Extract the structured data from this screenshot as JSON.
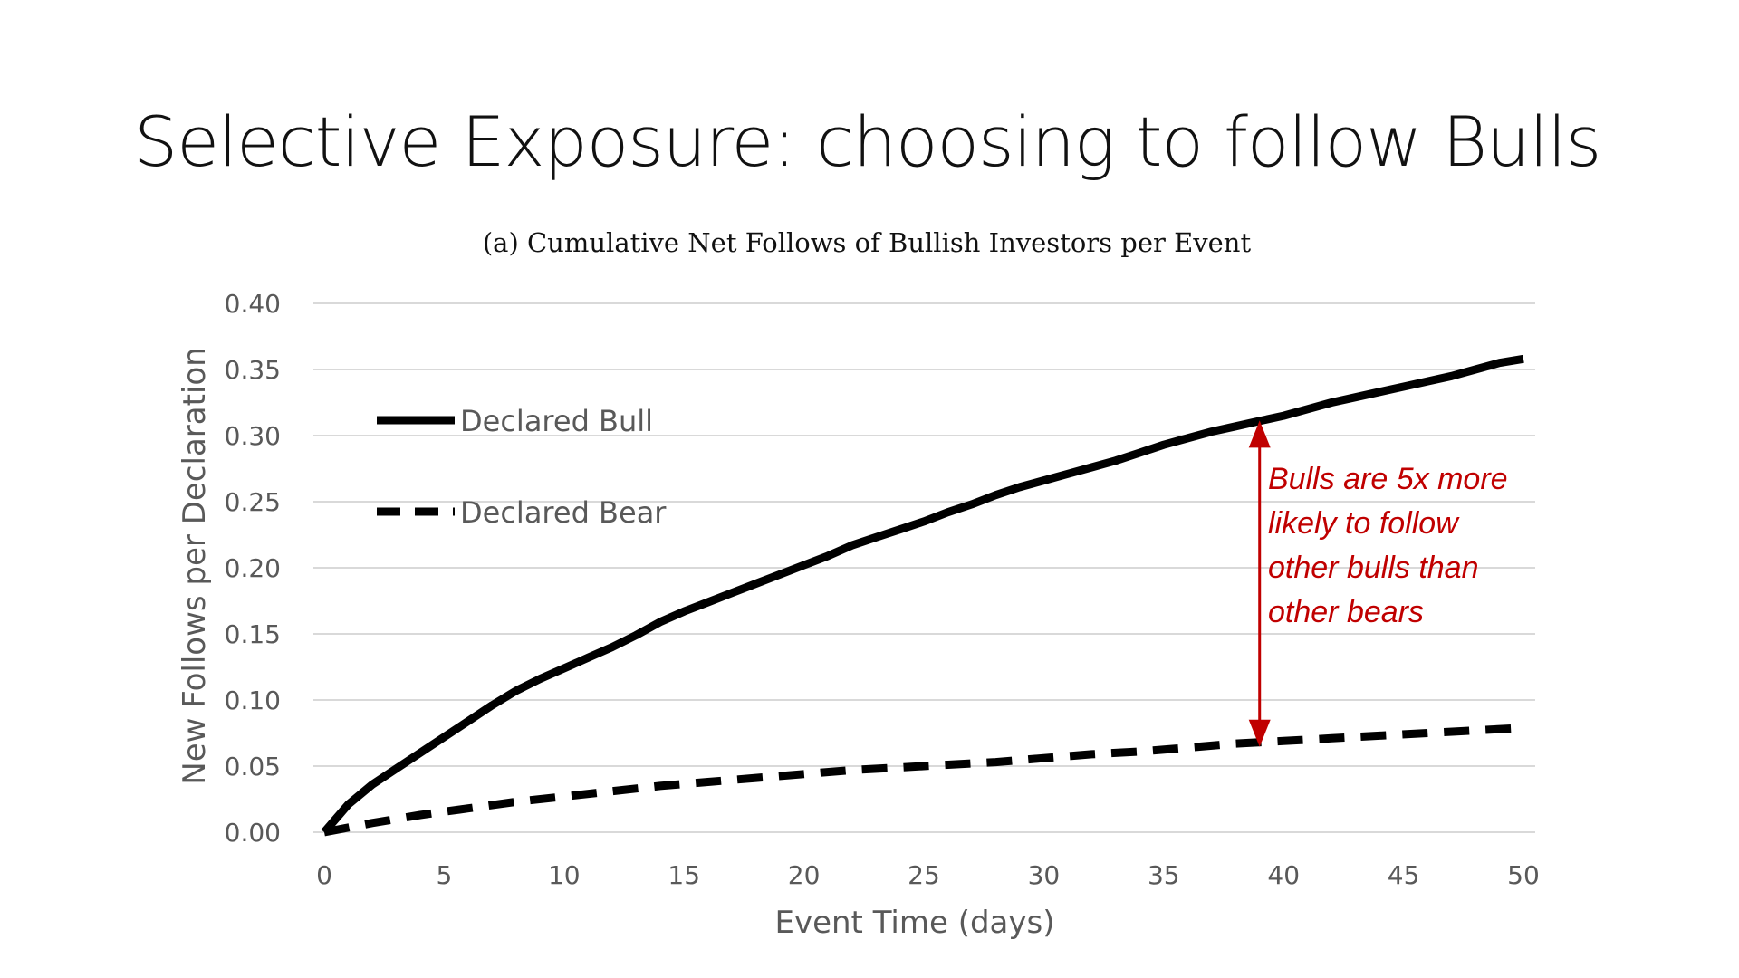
{
  "slide": {
    "title": "Selective Exposure: choosing to follow Bulls"
  },
  "colors": {
    "background": "#ffffff",
    "text": "#111111",
    "axis_text": "#595959",
    "gridline": "#d9d9d9",
    "series": "#000000",
    "annotation": "#c00000"
  },
  "chart_data": {
    "type": "line",
    "title": "(a) Cumulative Net Follows of Bullish Investors per Event",
    "xlabel": "Event Time (days)",
    "ylabel": "New Follows per Declaration",
    "xlim": [
      0,
      50
    ],
    "ylim": [
      0,
      0.4
    ],
    "x_ticks": [
      "0",
      "5",
      "10",
      "15",
      "20",
      "25",
      "30",
      "35",
      "40",
      "45",
      "50"
    ],
    "y_ticks": [
      "0.00",
      "0.05",
      "0.10",
      "0.15",
      "0.20",
      "0.25",
      "0.30",
      "0.35",
      "0.40"
    ],
    "grid": "horizontal",
    "legend_position": "upper-left",
    "series": [
      {
        "name": "Declared Bull",
        "line_style": "solid",
        "x": [
          0,
          1,
          2,
          3,
          4,
          5,
          6,
          7,
          8,
          9,
          10,
          11,
          12,
          13,
          14,
          15,
          16,
          17,
          18,
          19,
          20,
          21,
          22,
          23,
          24,
          25,
          26,
          27,
          28,
          29,
          30,
          31,
          32,
          33,
          34,
          35,
          36,
          37,
          38,
          39,
          40,
          41,
          42,
          43,
          44,
          45,
          46,
          47,
          48,
          49,
          50
        ],
        "y": [
          0.0,
          0.021,
          0.036,
          0.048,
          0.06,
          0.072,
          0.084,
          0.096,
          0.107,
          0.116,
          0.124,
          0.132,
          0.14,
          0.149,
          0.159,
          0.167,
          0.174,
          0.181,
          0.188,
          0.195,
          0.202,
          0.209,
          0.217,
          0.223,
          0.229,
          0.235,
          0.242,
          0.248,
          0.255,
          0.261,
          0.266,
          0.271,
          0.276,
          0.281,
          0.287,
          0.293,
          0.298,
          0.303,
          0.307,
          0.311,
          0.315,
          0.32,
          0.325,
          0.329,
          0.333,
          0.337,
          0.341,
          0.345,
          0.35,
          0.355,
          0.358
        ]
      },
      {
        "name": "Declared Bear",
        "line_style": "dashed",
        "x": [
          0,
          2,
          4,
          6,
          8,
          10,
          12,
          14,
          16,
          18,
          20,
          22,
          24,
          26,
          28,
          30,
          32,
          34,
          36,
          38,
          40,
          42,
          44,
          46,
          48,
          50
        ],
        "y": [
          0.0,
          0.007,
          0.013,
          0.018,
          0.023,
          0.027,
          0.031,
          0.035,
          0.038,
          0.041,
          0.044,
          0.047,
          0.049,
          0.051,
          0.053,
          0.056,
          0.059,
          0.061,
          0.064,
          0.067,
          0.069,
          0.071,
          0.073,
          0.075,
          0.077,
          0.079
        ]
      }
    ],
    "annotation": {
      "lines": [
        "Bulls are 5x more",
        "likely to follow",
        "other bulls than",
        "other bears"
      ],
      "arrow_x": 39,
      "arrow_y_from": 0.068,
      "arrow_y_to": 0.308
    }
  }
}
